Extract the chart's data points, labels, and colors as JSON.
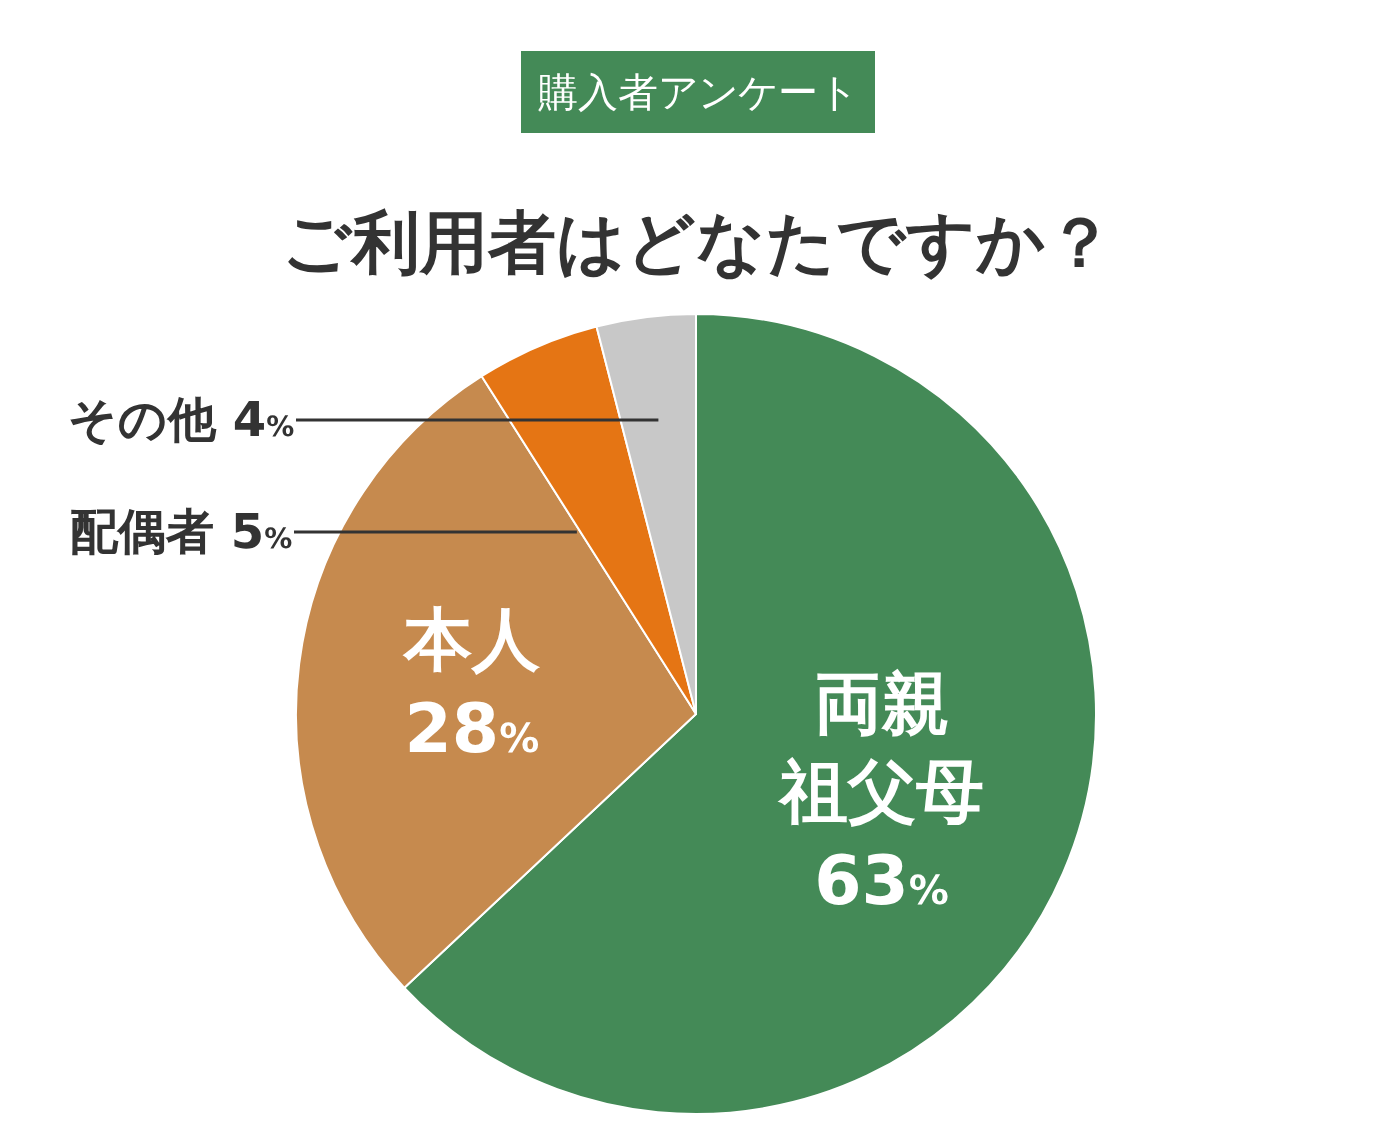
{
  "chart_data": {
    "type": "pie",
    "subtitle": "購入者アンケート",
    "title": "ご利用者はどなたですか？",
    "categories": [
      "両親祖父母",
      "本人",
      "配偶者",
      "その他"
    ],
    "value_labels": [
      "63%",
      "28%",
      "5%",
      "4%"
    ],
    "values": [
      63,
      28,
      5,
      4
    ],
    "colors": [
      "#448a57",
      "#c68a4e",
      "#e57514",
      "#c8c8c8"
    ],
    "legend": false
  }
}
